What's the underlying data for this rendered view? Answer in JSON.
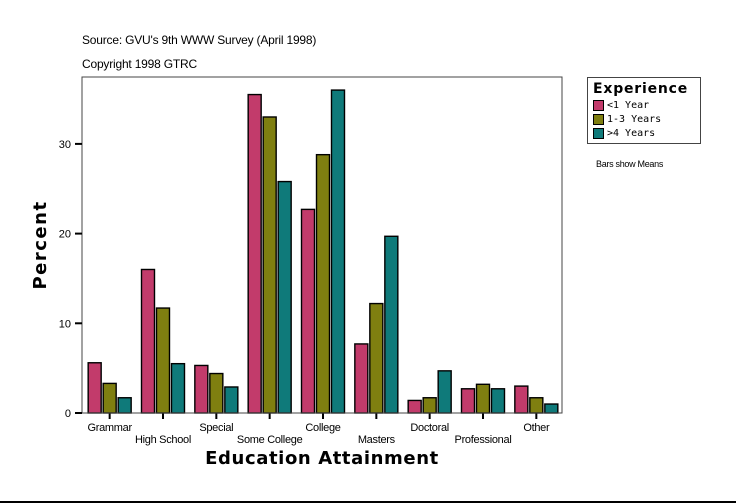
{
  "header": {
    "source": "Source: GVU's 9th WWW Survey (April 1998)",
    "copyright": "Copyright 1998 GTRC"
  },
  "legend": {
    "title": "Experience",
    "items": [
      {
        "label": "<1 Year",
        "color": "#c23b6b"
      },
      {
        "label": "1-3 Years",
        "color": "#7f7f10"
      },
      {
        "label": ">4 Years",
        "color": "#0f7a7a"
      }
    ]
  },
  "note": "Bars show Means",
  "colors": {
    "frame": "#444444",
    "bar_outline": "#000000",
    "background": "#ffffff"
  },
  "chart_data": {
    "type": "bar",
    "title": "",
    "xlabel": "Education Attainment",
    "ylabel": "Percent",
    "ylim": [
      0,
      37.5
    ],
    "yticks": [
      0,
      10,
      20,
      30
    ],
    "grid": false,
    "legend_position": "right-outside",
    "categories": [
      "Grammar",
      "High School",
      "Special",
      "Some College",
      "College",
      "Masters",
      "Doctoral",
      "Professional",
      "Other"
    ],
    "series": [
      {
        "name": "<1 Year",
        "values": [
          5.6,
          16.0,
          5.3,
          35.5,
          22.7,
          7.7,
          1.4,
          2.7,
          3.0
        ]
      },
      {
        "name": "1-3 Years",
        "values": [
          3.3,
          11.7,
          4.4,
          33.0,
          28.8,
          12.2,
          1.7,
          3.2,
          1.7
        ]
      },
      {
        "name": ">4 Years",
        "values": [
          1.7,
          5.5,
          2.9,
          25.8,
          36.0,
          19.7,
          4.7,
          2.7,
          1.0
        ]
      }
    ]
  }
}
